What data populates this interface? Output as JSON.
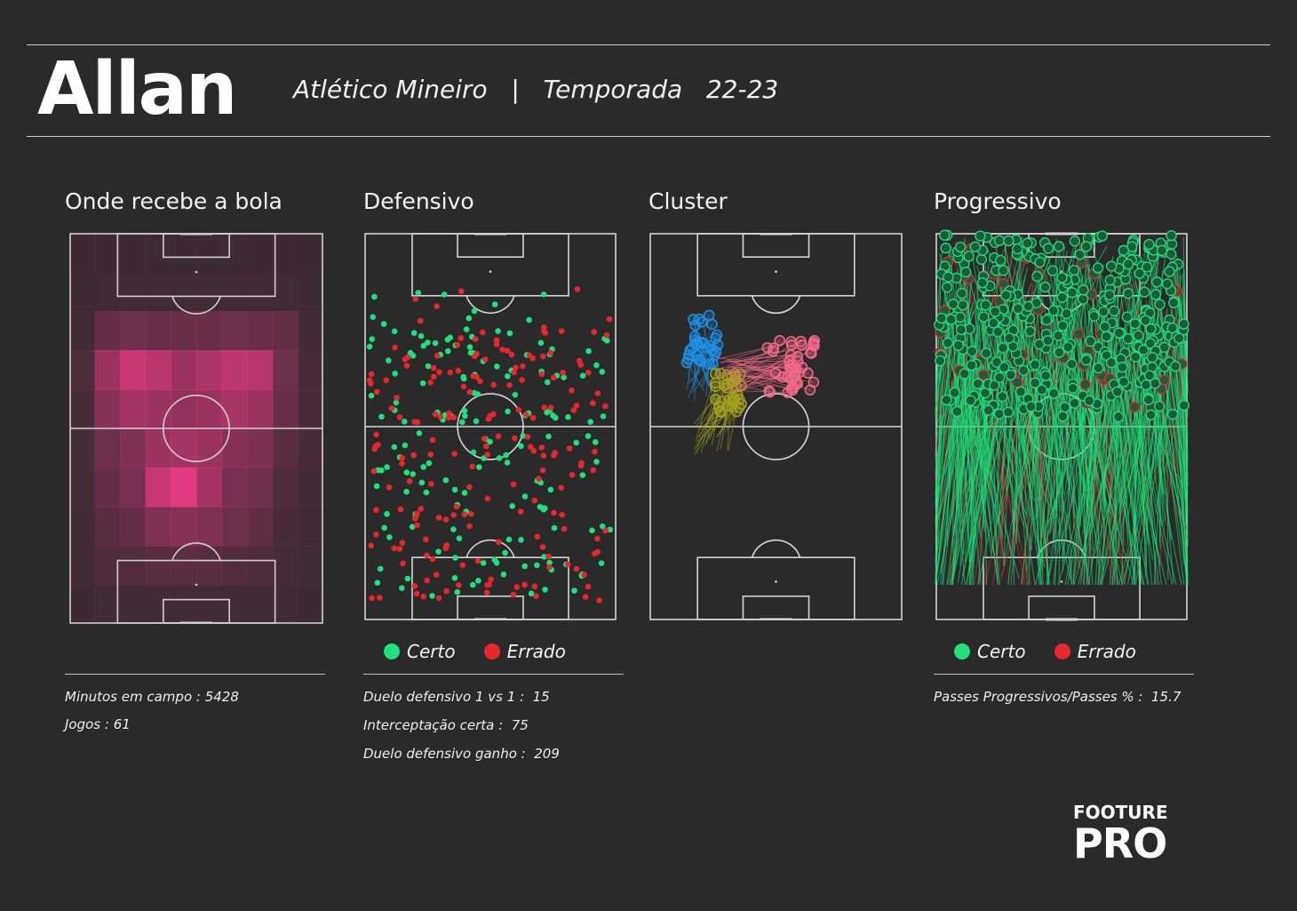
{
  "header": {
    "player": "Allan",
    "subtitle": "Atlético Mineiro   |   Temporada   22-23"
  },
  "panels": {
    "reception": {
      "title": "Onde recebe a bola",
      "stats": [
        "Minutos em campo : 5428",
        "Jogos : 61"
      ]
    },
    "defensive": {
      "title": "Defensivo",
      "legend": [
        {
          "label": "Certo",
          "color": "#1fe07a"
        },
        {
          "label": "Errado",
          "color": "#e5282b"
        }
      ],
      "stats": [
        "Duelo defensivo 1 vs 1 :  15",
        "Interceptação certa :  75",
        "Duelo defensivo ganho :  209"
      ]
    },
    "cluster": {
      "title": "Cluster"
    },
    "progressive": {
      "title": "Progressivo",
      "legend": [
        {
          "label": "Certo",
          "color": "#1fe07a"
        },
        {
          "label": "Errado",
          "color": "#e5282b"
        }
      ],
      "stats": [
        "Passes Progressivos/Passes % :  15.7"
      ]
    }
  },
  "logo": {
    "line1": "FOOTURE",
    "line2": "PRO"
  },
  "colors": {
    "background": "#2a2a2a",
    "success": "#1fe07a",
    "error": "#e5282b",
    "heat": "#ff3d8f",
    "cluster_blue": "#1e90e6",
    "cluster_olive": "#a3a21c",
    "cluster_pink": "#f26a86"
  },
  "chart_data": [
    {
      "type": "heatmap",
      "title": "Onde recebe a bola",
      "grid_cols": 10,
      "grid_rows": 10,
      "values": [
        [
          0.03,
          0.03,
          0.03,
          0.03,
          0.03,
          0.03,
          0.03,
          0.03,
          0.03,
          0.03
        ],
        [
          0.04,
          0.05,
          0.05,
          0.05,
          0.05,
          0.05,
          0.05,
          0.05,
          0.05,
          0.04
        ],
        [
          0.06,
          0.25,
          0.3,
          0.28,
          0.27,
          0.28,
          0.3,
          0.28,
          0.24,
          0.06
        ],
        [
          0.12,
          0.55,
          0.8,
          0.72,
          0.55,
          0.65,
          0.75,
          0.7,
          0.3,
          0.1
        ],
        [
          0.1,
          0.45,
          0.6,
          0.55,
          0.5,
          0.55,
          0.62,
          0.55,
          0.28,
          0.1
        ],
        [
          0.08,
          0.3,
          0.4,
          0.55,
          0.6,
          0.55,
          0.45,
          0.38,
          0.2,
          0.08
        ],
        [
          0.08,
          0.25,
          0.35,
          0.8,
          0.95,
          0.6,
          0.35,
          0.3,
          0.12,
          0.07
        ],
        [
          0.07,
          0.2,
          0.25,
          0.4,
          0.45,
          0.4,
          0.3,
          0.22,
          0.1,
          0.06
        ],
        [
          0.06,
          0.12,
          0.15,
          0.18,
          0.2,
          0.18,
          0.15,
          0.12,
          0.08,
          0.05
        ],
        [
          0.03,
          0.05,
          0.05,
          0.05,
          0.05,
          0.05,
          0.05,
          0.05,
          0.05,
          0.03
        ]
      ]
    },
    {
      "type": "scatter",
      "title": "Defensivo",
      "series": [
        {
          "name": "Certo",
          "color": "#1fe07a",
          "count": 170
        },
        {
          "name": "Errado",
          "color": "#e5282b",
          "count": 190
        }
      ],
      "xlim": [
        0,
        100
      ],
      "ylim": [
        0,
        100
      ]
    },
    {
      "type": "line",
      "title": "Cluster",
      "series": [
        {
          "color": "#1e90e6",
          "count": 30
        },
        {
          "color": "#a3a21c",
          "count": 32
        },
        {
          "color": "#f26a86",
          "count": 45
        }
      ]
    },
    {
      "type": "line",
      "title": "Progressivo",
      "series": [
        {
          "name": "Certo",
          "color": "#1fe07a",
          "count": 520
        },
        {
          "name": "Errado",
          "color": "#e5282b",
          "count": 90
        }
      ]
    }
  ]
}
